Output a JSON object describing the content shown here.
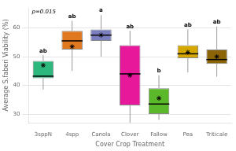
{
  "chart_data": {
    "type": "box",
    "categories": [
      "3sppN",
      "4spp",
      "Canola",
      "Clover",
      "Fallow",
      "Pea",
      "Triticale"
    ],
    "colors": [
      "#2db87e",
      "#e07820",
      "#7b7fc0",
      "#e8189a",
      "#5ab82a",
      "#d4a800",
      "#8b6408"
    ],
    "boxes": [
      {
        "q1": 42.5,
        "median": 43.2,
        "q3": 48.5,
        "whisker_low": 38.5,
        "whisker_high": 50.5,
        "mean": 47.0
      },
      {
        "q1": 52.5,
        "median": 55.5,
        "q3": 59.0,
        "whisker_low": 45.0,
        "whisker_high": 62.5,
        "mean": 53.5
      },
      {
        "q1": 55.5,
        "median": 57.5,
        "q3": 59.5,
        "whisker_low": 50.0,
        "whisker_high": 64.5,
        "mean": 57.5
      },
      {
        "q1": 33.0,
        "median": 44.0,
        "q3": 54.0,
        "whisker_low": 27.0,
        "whisker_high": 59.0,
        "mean": 43.5
      },
      {
        "q1": 30.0,
        "median": 33.5,
        "q3": 39.0,
        "whisker_low": 28.0,
        "whisker_high": 43.5,
        "mean": 35.5
      },
      {
        "q1": 49.5,
        "median": 51.0,
        "q3": 54.0,
        "whisker_low": 44.5,
        "whisker_high": 59.5,
        "mean": 51.5
      },
      {
        "q1": 47.5,
        "median": 49.0,
        "q3": 52.5,
        "whisker_low": 43.0,
        "whisker_high": 60.5,
        "mean": 50.0
      }
    ],
    "labels": [
      "ab",
      "ab",
      "a",
      "ab",
      "b",
      "ab",
      "ab"
    ],
    "marker": "star",
    "xlabel": "Cover Crop Treatment",
    "ylabel": "Average S.faberi Viability (%)",
    "ylim": [
      27,
      67
    ],
    "yticks": [
      30,
      40,
      50,
      60
    ],
    "grid": true,
    "annotation": "p=0.015"
  }
}
